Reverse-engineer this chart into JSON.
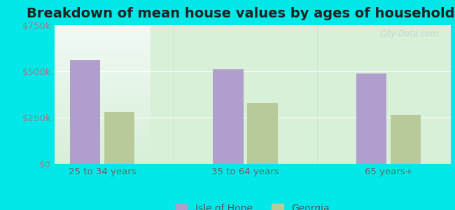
{
  "title": "Breakdown of mean house values by ages of householders",
  "categories": [
    "25 to 34 years",
    "35 to 64 years",
    "65 years+"
  ],
  "isle_of_hope_values": [
    560000,
    510000,
    490000
  ],
  "georgia_values": [
    280000,
    330000,
    265000
  ],
  "bar_color_ioh": "#b09fcc",
  "bar_color_ga": "#b8c99a",
  "ylim": [
    0,
    750000
  ],
  "yticks": [
    0,
    250000,
    500000,
    750000
  ],
  "ytick_labels": [
    "$0",
    "$250k",
    "$500k",
    "$750k"
  ],
  "legend_labels": [
    "Isle of Hope",
    "Georgia"
  ],
  "background_outer": "#00e8e8",
  "background_inner_top": "#e8f5f0",
  "background_inner_bottom": "#d8efd8",
  "title_fontsize": 14,
  "tick_fontsize": 9.5,
  "legend_fontsize": 10,
  "bar_width": 0.32,
  "watermark": "City-Data.com"
}
